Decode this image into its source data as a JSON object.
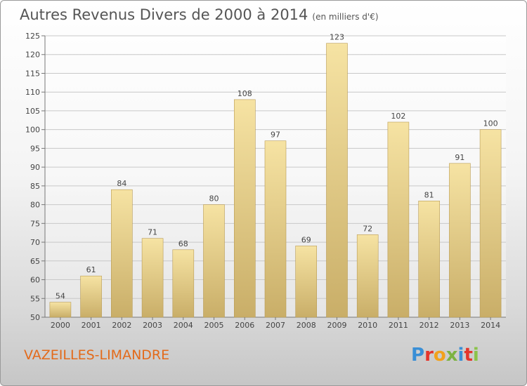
{
  "title": "Autres Revenus Divers de 2000 à 2014",
  "subtitle": "(en milliers d'€)",
  "commune": "VAZEILLES-LIMANDRE",
  "logo": {
    "letters": [
      "P",
      "r",
      "o",
      "x",
      "i",
      "t",
      "i"
    ],
    "colors": [
      "#3a8fd6",
      "#e4352b",
      "#f2a11b",
      "#7cb342",
      "#3a8fd6",
      "#e4352b",
      "#8bc34a"
    ]
  },
  "colors": {
    "bar_top": "#f6e3a3",
    "bar_bottom": "#c9ae68",
    "bar_border": "#b89b55",
    "grid": "#c8c8c8",
    "text": "#444444"
  },
  "chart_data": {
    "type": "bar",
    "categories": [
      "2000",
      "2001",
      "2002",
      "2003",
      "2004",
      "2005",
      "2006",
      "2007",
      "2008",
      "2009",
      "2010",
      "2011",
      "2012",
      "2013",
      "2014"
    ],
    "values": [
      54,
      61,
      84,
      71,
      68,
      80,
      108,
      97,
      69,
      123,
      72,
      102,
      81,
      91,
      100
    ],
    "ylim": [
      50,
      125
    ],
    "yticks": [
      50,
      55,
      60,
      65,
      70,
      75,
      80,
      85,
      90,
      95,
      100,
      105,
      110,
      115,
      120,
      125
    ],
    "grid": true,
    "xlabel": "",
    "ylabel": ""
  }
}
